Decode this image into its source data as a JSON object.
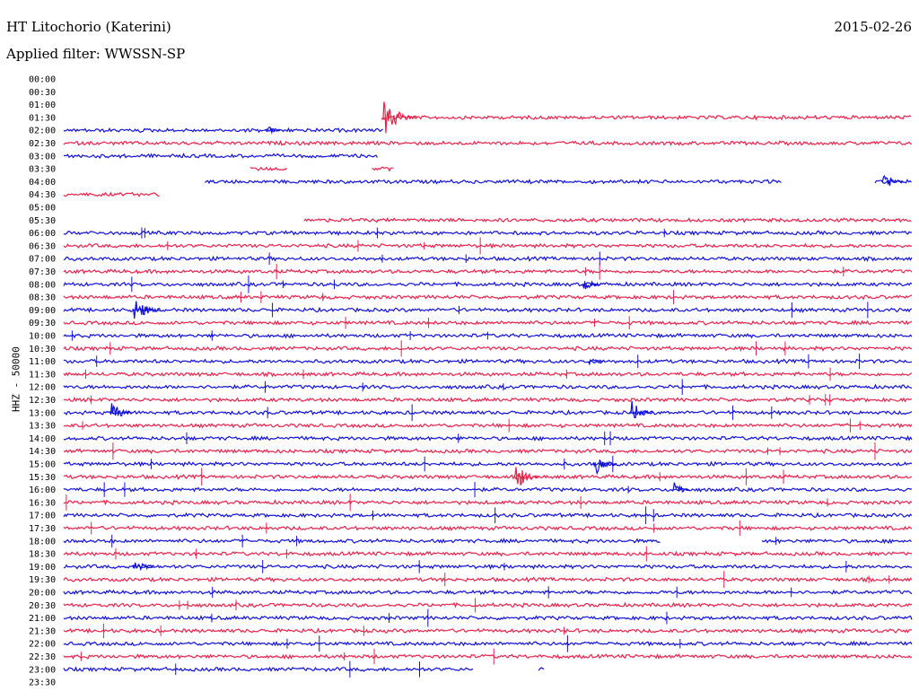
{
  "header": {
    "station": "HT Litochorio (Katerini)",
    "date": "2015-02-26",
    "filter": "Applied filter: WWSSN-SP",
    "channel": "HHZ - 50000"
  },
  "colors": {
    "blue": "#1010d8",
    "red": "#e8204a"
  },
  "chart_data": {
    "type": "line",
    "title": "HT Litochorio (Katerini)",
    "subtitle": "Applied filter: WWSSN-SP",
    "ylabel": "HHZ - 50000",
    "xlabel": "",
    "tick_labels": [
      "00:00",
      "00:30",
      "01:00",
      "01:30",
      "02:00",
      "02:30",
      "03:00",
      "03:30",
      "04:00",
      "04:30",
      "05:00",
      "05:30",
      "06:00",
      "06:30",
      "07:00",
      "07:30",
      "08:00",
      "08:30",
      "09:00",
      "09:30",
      "10:00",
      "10:30",
      "11:00",
      "11:30",
      "12:00",
      "12:30",
      "13:00",
      "13:30",
      "14:00",
      "14:30",
      "15:00",
      "15:30",
      "16:00",
      "16:30",
      "17:00",
      "17:30",
      "18:00",
      "18:30",
      "19:00",
      "19:30",
      "20:00",
      "20:30",
      "21:00",
      "21:30",
      "22:00",
      "22:30",
      "23:00",
      "23:30"
    ],
    "row_minutes": 30,
    "trace_segments": [
      [],
      [],
      [],
      [
        [
          11.3,
          30
        ]
      ],
      [
        [
          0,
          11.3
        ]
      ],
      [
        [
          0,
          30
        ]
      ],
      [
        [
          0,
          11.1
        ]
      ],
      [
        [
          6.6,
          7.9
        ],
        [
          10.9,
          11.7
        ]
      ],
      [
        [
          5.0,
          25.4
        ],
        [
          28.7,
          30
        ]
      ],
      [
        [
          0,
          3.4
        ]
      ],
      [],
      [
        [
          8.5,
          30
        ]
      ],
      [
        [
          0,
          30
        ]
      ],
      [
        [
          0,
          30
        ]
      ],
      [
        [
          0,
          30
        ]
      ],
      [
        [
          0,
          30
        ]
      ],
      [
        [
          0,
          30
        ]
      ],
      [
        [
          0,
          30
        ]
      ],
      [
        [
          0,
          30
        ]
      ],
      [
        [
          0,
          30
        ]
      ],
      [
        [
          0,
          30
        ]
      ],
      [
        [
          0,
          30
        ]
      ],
      [
        [
          0,
          30
        ]
      ],
      [
        [
          0,
          30
        ]
      ],
      [
        [
          0,
          30
        ]
      ],
      [
        [
          0,
          30
        ]
      ],
      [
        [
          0,
          30
        ]
      ],
      [
        [
          0,
          30
        ]
      ],
      [
        [
          0,
          30
        ]
      ],
      [
        [
          0,
          30
        ]
      ],
      [
        [
          0,
          30
        ]
      ],
      [
        [
          0,
          30
        ]
      ],
      [
        [
          0,
          30
        ]
      ],
      [
        [
          0,
          30
        ]
      ],
      [
        [
          0,
          30
        ]
      ],
      [
        [
          0,
          30
        ]
      ],
      [
        [
          0,
          21.1
        ],
        [
          24.7,
          30
        ]
      ],
      [
        [
          0,
          30
        ]
      ],
      [
        [
          0,
          30
        ]
      ],
      [
        [
          0,
          30
        ]
      ],
      [
        [
          0,
          30
        ]
      ],
      [
        [
          0,
          30
        ]
      ],
      [
        [
          0,
          30
        ]
      ],
      [
        [
          0,
          30
        ]
      ],
      [
        [
          0,
          30
        ]
      ],
      [
        [
          0,
          30
        ]
      ],
      [
        [
          0,
          14.5
        ],
        [
          16.8,
          17.0
        ]
      ],
      []
    ],
    "events": [
      {
        "row": 3,
        "minute": 11.3,
        "amplitude": 2.0
      },
      {
        "row": 4,
        "minute": 7.2,
        "amplitude": 0.3
      },
      {
        "row": 8,
        "minute": 29.0,
        "amplitude": 0.9
      },
      {
        "row": 16,
        "minute": 18.4,
        "amplitude": 0.6
      },
      {
        "row": 18,
        "minute": 2.5,
        "amplitude": 1.3
      },
      {
        "row": 22,
        "minute": 18.6,
        "amplitude": 0.4
      },
      {
        "row": 26,
        "minute": 1.7,
        "amplitude": 0.9
      },
      {
        "row": 26,
        "minute": 20.1,
        "amplitude": 1.0
      },
      {
        "row": 31,
        "minute": 16.0,
        "amplitude": 1.2
      },
      {
        "row": 30,
        "minute": 18.8,
        "amplitude": 1.0
      },
      {
        "row": 32,
        "minute": 21.6,
        "amplitude": 0.5
      },
      {
        "row": 38,
        "minute": 2.5,
        "amplitude": 0.9
      }
    ]
  }
}
